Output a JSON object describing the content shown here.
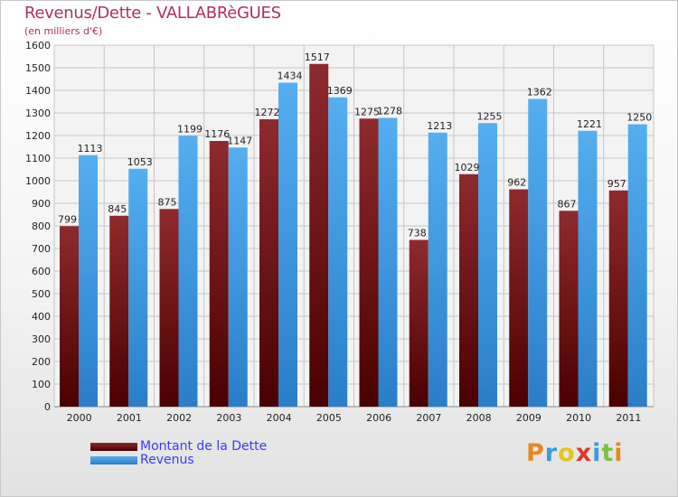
{
  "chart_data": {
    "type": "bar",
    "title": "Revenus/Dette - VALLABRèGUES",
    "subtitle": "(en milliers d'€)",
    "xlabel": "",
    "ylabel": "",
    "categories": [
      "2000",
      "2001",
      "2002",
      "2003",
      "2004",
      "2005",
      "2006",
      "2007",
      "2008",
      "2009",
      "2010",
      "2011"
    ],
    "series": [
      {
        "name": "Montant de la Dette",
        "color": "#7a1a1a",
        "values": [
          799,
          845,
          875,
          1176,
          1272,
          1517,
          1275,
          738,
          1029,
          962,
          867,
          957
        ]
      },
      {
        "name": "Revenus",
        "color": "#4aa3e8",
        "values": [
          1113,
          1053,
          1199,
          1147,
          1434,
          1369,
          1278,
          1213,
          1255,
          1362,
          1221,
          1250
        ]
      }
    ],
    "ylim": [
      0,
      1600
    ],
    "yticks": [
      0,
      100,
      200,
      300,
      400,
      500,
      600,
      700,
      800,
      900,
      1000,
      1100,
      1200,
      1300,
      1400,
      1500,
      1600
    ],
    "grid": true,
    "legend_position": "bottom-left"
  },
  "logo": {
    "text": "Proxiti",
    "colors": [
      "#e8891f",
      "#3a9be0",
      "#e8c21f",
      "#d93a2a",
      "#3a9be0",
      "#7ac142",
      "#e8891f"
    ]
  }
}
